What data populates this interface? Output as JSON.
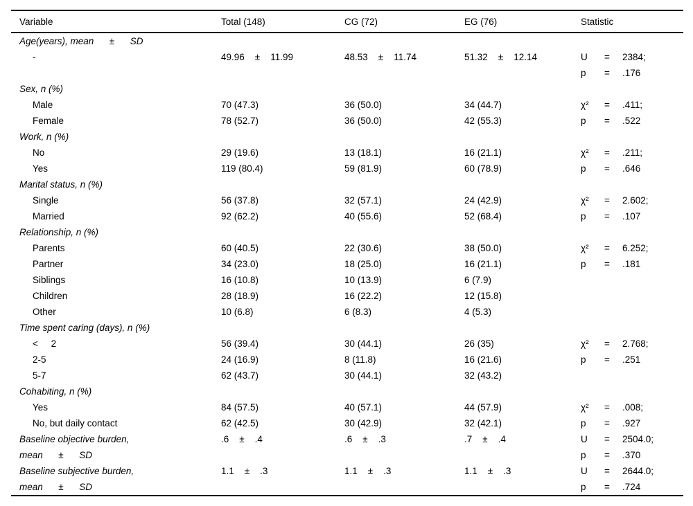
{
  "table": {
    "columns": [
      "Variable",
      "Total (148)",
      "CG (72)",
      "EG (76)",
      "Statistic"
    ],
    "stat_equals": "=",
    "rows": [
      {
        "label": "Age(years), mean      ±      SD",
        "it": 1,
        "ind": 0,
        "total": "",
        "cg": "",
        "eg": "",
        "sym": "",
        "val": ""
      },
      {
        "label": "-",
        "it": 0,
        "ind": 1,
        "total": "49.96    ±    11.99",
        "cg": "48.53    ±    11.74",
        "eg": "51.32    ±    12.14",
        "sym": "U",
        "val": "2384;"
      },
      {
        "label": "",
        "it": 0,
        "ind": 0,
        "total": "",
        "cg": "",
        "eg": "",
        "sym": "p",
        "val": ".176"
      },
      {
        "label": "Sex, n (%)",
        "it": 1,
        "ind": 0,
        "total": "",
        "cg": "",
        "eg": "",
        "sym": "",
        "val": ""
      },
      {
        "label": "Male",
        "it": 0,
        "ind": 1,
        "total": "70 (47.3)",
        "cg": "36 (50.0)",
        "eg": "34 (44.7)",
        "sym": "χ²",
        "val": ".411;"
      },
      {
        "label": "Female",
        "it": 0,
        "ind": 1,
        "total": "78 (52.7)",
        "cg": "36 (50.0)",
        "eg": "42 (55.3)",
        "sym": "p",
        "val": ".522"
      },
      {
        "label": "Work, n (%)",
        "it": 1,
        "ind": 0,
        "total": "",
        "cg": "",
        "eg": "",
        "sym": "",
        "val": ""
      },
      {
        "label": "No",
        "it": 0,
        "ind": 1,
        "total": "29 (19.6)",
        "cg": "13 (18.1)",
        "eg": "16 (21.1)",
        "sym": "χ²",
        "val": ".211;"
      },
      {
        "label": "Yes",
        "it": 0,
        "ind": 1,
        "total": "119 (80.4)",
        "cg": "59 (81.9)",
        "eg": "60 (78.9)",
        "sym": "p",
        "val": ".646"
      },
      {
        "label": "Marital status, n (%)",
        "it": 1,
        "ind": 0,
        "total": "",
        "cg": "",
        "eg": "",
        "sym": "",
        "val": ""
      },
      {
        "label": "Single",
        "it": 0,
        "ind": 1,
        "total": "56 (37.8)",
        "cg": "32 (57.1)",
        "eg": "24 (42.9)",
        "sym": "χ²",
        "val": "2.602;"
      },
      {
        "label": "Married",
        "it": 0,
        "ind": 1,
        "total": "92 (62.2)",
        "cg": "40 (55.6)",
        "eg": "52 (68.4)",
        "sym": "p",
        "val": ".107"
      },
      {
        "label": "Relationship, n (%)",
        "it": 1,
        "ind": 0,
        "total": "",
        "cg": "",
        "eg": "",
        "sym": "",
        "val": ""
      },
      {
        "label": "Parents",
        "it": 0,
        "ind": 1,
        "total": "60 (40.5)",
        "cg": "22 (30.6)",
        "eg": "38 (50.0)",
        "sym": "χ²",
        "val": "6.252;"
      },
      {
        "label": "Partner",
        "it": 0,
        "ind": 1,
        "total": "34 (23.0)",
        "cg": "18 (25.0)",
        "eg": "16 (21.1)",
        "sym": "p",
        "val": ".181"
      },
      {
        "label": "Siblings",
        "it": 0,
        "ind": 1,
        "total": "16 (10.8)",
        "cg": "10 (13.9)",
        "eg": "6 (7.9)",
        "sym": "",
        "val": ""
      },
      {
        "label": "Children",
        "it": 0,
        "ind": 1,
        "total": "28 (18.9)",
        "cg": "16 (22.2)",
        "eg": "12 (15.8)",
        "sym": "",
        "val": ""
      },
      {
        "label": "Other",
        "it": 0,
        "ind": 1,
        "total": "10 (6.8)",
        "cg": "6 (8.3)",
        "eg": "4 (5.3)",
        "sym": "",
        "val": ""
      },
      {
        "label": "Time spent caring (days), n (%)",
        "it": 1,
        "ind": 0,
        "total": "",
        "cg": "",
        "eg": "",
        "sym": "",
        "val": ""
      },
      {
        "label": "<     2",
        "it": 0,
        "ind": 1,
        "total": "56 (39.4)",
        "cg": "30 (44.1)",
        "eg": "26 (35)",
        "sym": "χ²",
        "val": "2.768;"
      },
      {
        "label": "2-5",
        "it": 0,
        "ind": 1,
        "total": "24 (16.9)",
        "cg": "8 (11.8)",
        "eg": "16 (21.6)",
        "sym": "p",
        "val": ".251"
      },
      {
        "label": "5-7",
        "it": 0,
        "ind": 1,
        "total": "62 (43.7)",
        "cg": "30 (44.1)",
        "eg": "32 (43.2)",
        "sym": "",
        "val": ""
      },
      {
        "label": "Cohabiting, n (%)",
        "it": 1,
        "ind": 0,
        "total": "",
        "cg": "",
        "eg": "",
        "sym": "",
        "val": ""
      },
      {
        "label": "Yes",
        "it": 0,
        "ind": 1,
        "total": "84 (57.5)",
        "cg": "40 (57.1)",
        "eg": "44 (57.9)",
        "sym": "χ²",
        "val": ".008;"
      },
      {
        "label": "No, but daily contact",
        "it": 0,
        "ind": 1,
        "total": "62 (42.5)",
        "cg": "30 (42.9)",
        "eg": "32 (42.1)",
        "sym": "p",
        "val": ".927"
      },
      {
        "label": "Baseline objective burden,",
        "it": 1,
        "ind": 0,
        "total": ".6    ±    .4",
        "cg": ".6    ±    .3",
        "eg": ".7    ±    .4",
        "sym": "U",
        "val": "2504.0;"
      },
      {
        "label": "mean      ±      SD",
        "it": 1,
        "ind": 0,
        "total": "",
        "cg": "",
        "eg": "",
        "sym": "p",
        "val": ".370"
      },
      {
        "label": "Baseline subjective burden,",
        "it": 1,
        "ind": 0,
        "total": "1.1    ±    .3",
        "cg": "1.1    ±    .3",
        "eg": "1.1    ±    .3",
        "sym": "U",
        "val": "2644.0;"
      },
      {
        "label": "mean      ±      SD",
        "it": 1,
        "ind": 0,
        "total": "",
        "cg": "",
        "eg": "",
        "sym": "p",
        "val": ".724"
      }
    ]
  }
}
